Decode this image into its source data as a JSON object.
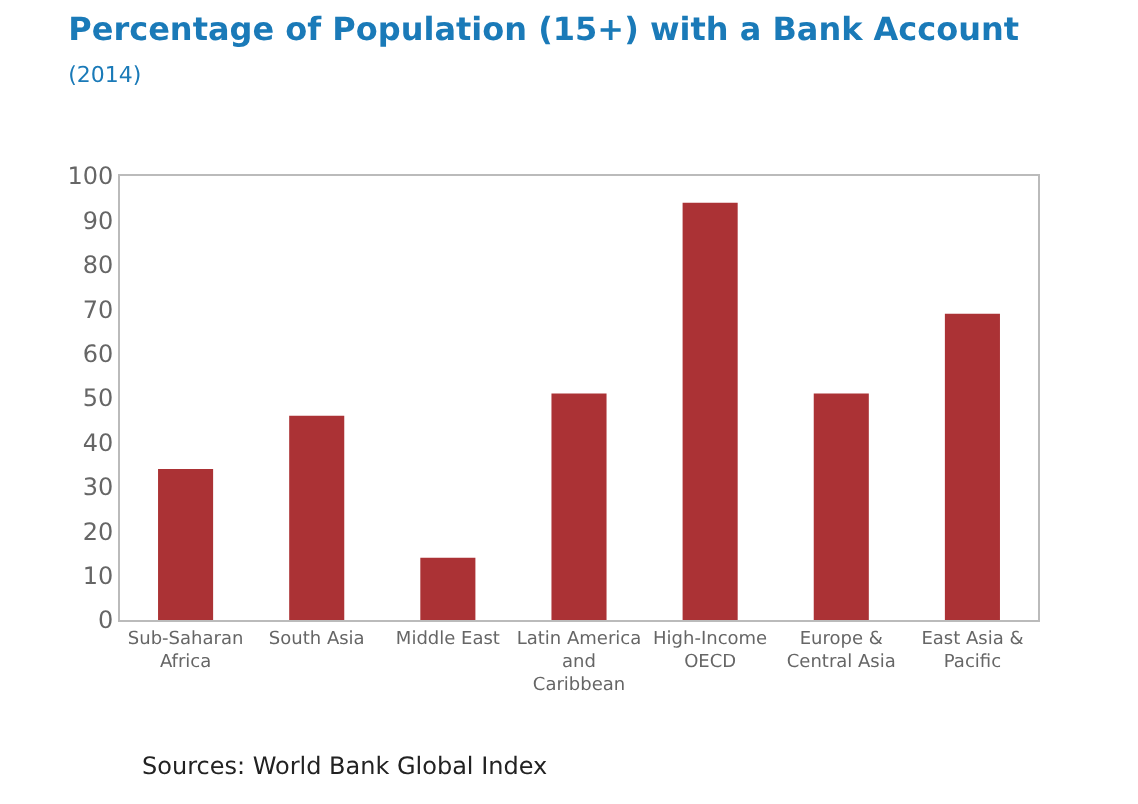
{
  "chart_data": {
    "type": "bar",
    "title": "Percentage of Population (15+) with a Bank Account",
    "subtitle": "(2014)",
    "categories": [
      "Sub-Saharan\nAfrica",
      "South Asia",
      "Middle East",
      "Latin America\nand\nCaribbean",
      "High-Income\nOECD",
      "Europe &\nCentral Asia",
      "East Asia &\nPacific"
    ],
    "values": [
      34,
      46,
      14,
      51,
      94,
      51,
      69
    ],
    "color": "#ab3235",
    "ylim": [
      0,
      100
    ],
    "yticks": [
      0,
      10,
      20,
      30,
      40,
      50,
      60,
      70,
      80,
      90,
      100
    ],
    "grid": false,
    "annotations": [
      "Sources: World Bank Global Index"
    ]
  }
}
